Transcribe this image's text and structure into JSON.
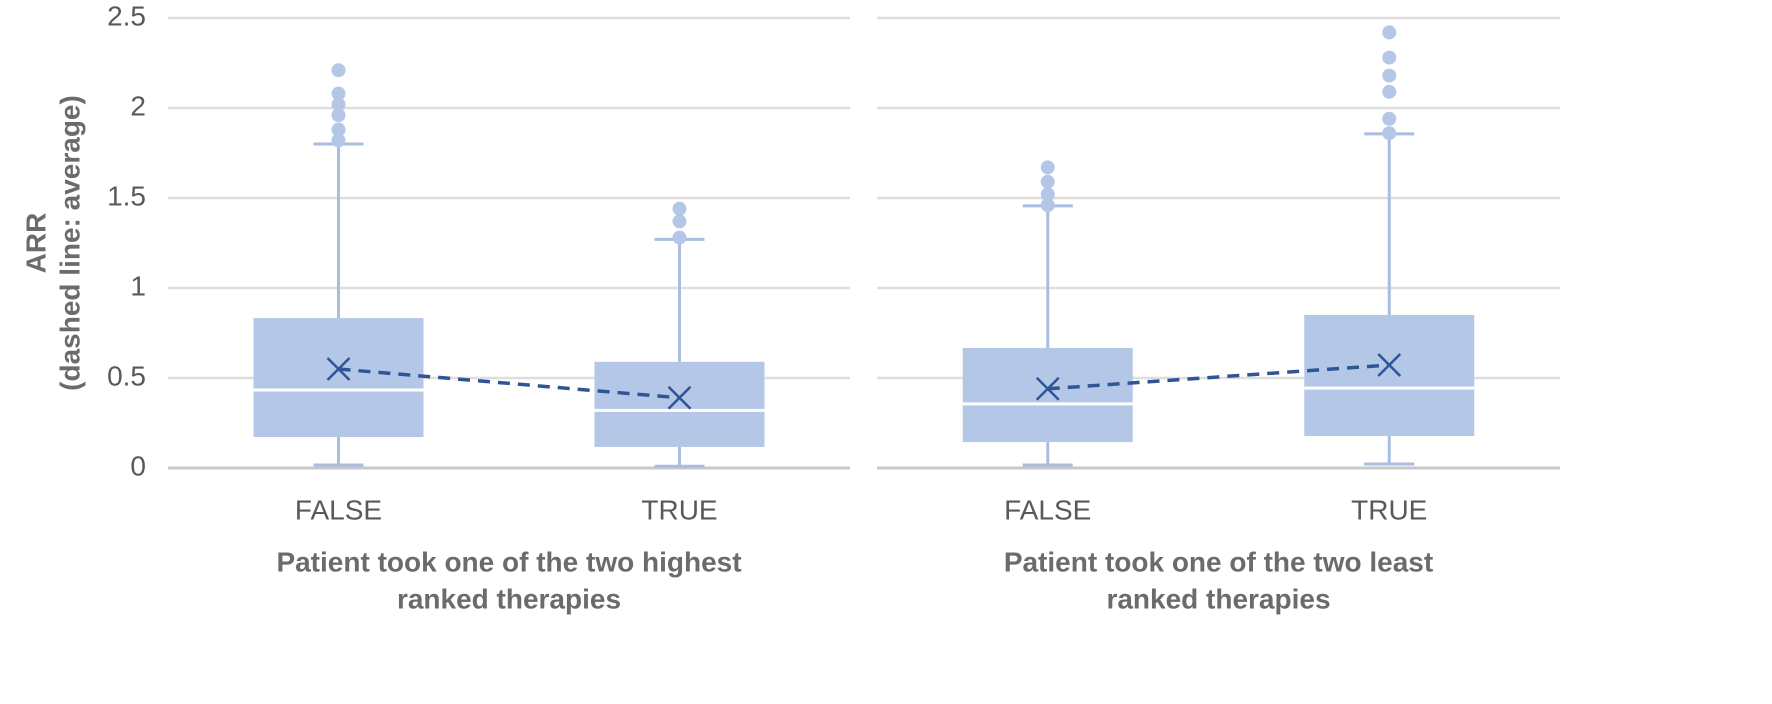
{
  "chart_data": [
    {
      "type": "box",
      "ylabel": [
        "ARR",
        "(dashed line: average)"
      ],
      "xlabel": [
        "Patient took one of the two highest",
        "ranked therapies"
      ],
      "categories": [
        "FALSE",
        "TRUE"
      ],
      "ylim": [
        0,
        2.5
      ],
      "yticks": [
        0,
        0.5,
        1,
        1.5,
        2,
        2.5
      ],
      "ytick_labels": true,
      "grid": true,
      "color": "#b4c7e7",
      "mean_color": "#2f5597",
      "boxes": [
        {
          "whislo": 0.017,
          "q1": 0.172,
          "med": 0.433,
          "q3": 0.833,
          "whishi": 1.8,
          "mean": 0.55,
          "fliers": [
            2.21,
            2.08,
            2.02,
            1.96,
            1.88,
            1.82
          ]
        },
        {
          "whislo": 0.01,
          "q1": 0.117,
          "med": 0.32,
          "q3": 0.59,
          "whishi": 1.27,
          "mean": 0.39,
          "fliers": [
            1.44,
            1.37,
            1.28
          ]
        }
      ]
    },
    {
      "type": "box",
      "xlabel": [
        "Patient took one of the two least",
        "ranked therapies"
      ],
      "categories": [
        "FALSE",
        "TRUE"
      ],
      "ylim": [
        0,
        2.5
      ],
      "yticks": [
        0,
        0.5,
        1,
        1.5,
        2,
        2.5
      ],
      "ytick_labels": false,
      "grid": true,
      "color": "#b4c7e7",
      "mean_color": "#2f5597",
      "boxes": [
        {
          "whislo": 0.017,
          "q1": 0.144,
          "med": 0.356,
          "q3": 0.667,
          "whishi": 1.456,
          "mean": 0.44,
          "fliers": [
            1.67,
            1.59,
            1.52,
            1.46
          ]
        },
        {
          "whislo": 0.022,
          "q1": 0.178,
          "med": 0.444,
          "q3": 0.85,
          "whishi": 1.856,
          "mean": 0.572,
          "fliers": [
            2.42,
            2.28,
            2.18,
            2.09,
            1.94,
            1.86
          ]
        }
      ]
    }
  ]
}
